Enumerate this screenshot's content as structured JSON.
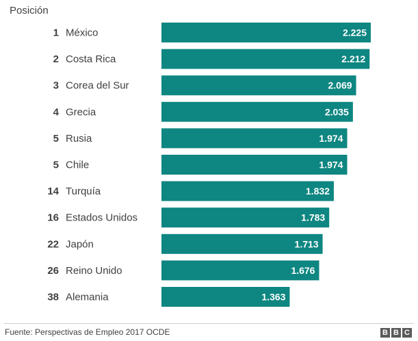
{
  "chart_data": {
    "type": "bar",
    "orientation": "horizontal",
    "title": "",
    "column_header": "Posición",
    "categories": [
      "México",
      "Costa Rica",
      "Corea del Sur",
      "Grecia",
      "Rusia",
      "Chile",
      "Turquía",
      "Estados Unidos",
      "Japón",
      "Reino Unido",
      "Alemania"
    ],
    "ranks": [
      "1",
      "2",
      "3",
      "4",
      "5",
      "5",
      "14",
      "16",
      "22",
      "26",
      "38"
    ],
    "values": [
      2225,
      2212,
      2069,
      2035,
      1974,
      1974,
      1832,
      1783,
      1713,
      1676,
      1363
    ],
    "value_labels": [
      "2.225",
      "2.212",
      "2.069",
      "2.035",
      "1.974",
      "1.974",
      "1.832",
      "1.783",
      "1.713",
      "1.676",
      "1.363"
    ],
    "xlim": [
      0,
      2225
    ],
    "grid": false,
    "legend": "none",
    "bar_color": "#0e8681",
    "label_color": "#ffffff"
  },
  "header_label": "Posición",
  "footer": {
    "source": "Fuente: Perspectivas de Empleo 2017 OCDE",
    "logo_letters": [
      "B",
      "B",
      "C"
    ]
  }
}
